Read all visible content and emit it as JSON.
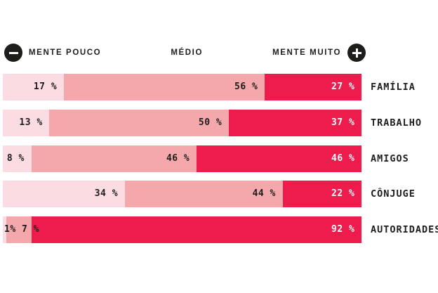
{
  "legend": {
    "left": {
      "icon": "minus-circle",
      "label": "MENTE POUCO"
    },
    "center": {
      "label": "MÉDIO"
    },
    "right": {
      "icon": "plus-circle",
      "label": "MENTE MUITO"
    }
  },
  "colors": {
    "text_dark": "#1d1d1b",
    "text_light": "#ffffff",
    "background": "#ffffff"
  },
  "chart_data": {
    "type": "bar",
    "orientation": "horizontal",
    "stacked": true,
    "title": "",
    "xlabel": "",
    "ylabel": "",
    "xlim": [
      0,
      100
    ],
    "grid": false,
    "legend_position": "top",
    "value_suffix": "%",
    "categories": [
      "FAMÍLIA",
      "TRABALHO",
      "AMIGOS",
      "CÔNJUGE",
      "AUTORIDADES"
    ],
    "series": [
      {
        "name": "MENTE POUCO",
        "color": "#fbdce3",
        "label_color": "#1d1d1b",
        "values": [
          17,
          13,
          8,
          34,
          1
        ]
      },
      {
        "name": "MÉDIO",
        "color": "#f5a8ac",
        "label_color": "#1d1d1b",
        "values": [
          56,
          50,
          46,
          44,
          7
        ]
      },
      {
        "name": "MENTE MUITO",
        "color": "#ee1b4d",
        "label_color": "#ffffff",
        "values": [
          27,
          37,
          46,
          22,
          92
        ]
      }
    ],
    "value_labels": [
      [
        "17 %",
        "56 %",
        "27 %"
      ],
      [
        "13 %",
        "50 %",
        "37 %"
      ],
      [
        "8 %",
        "46 %",
        "46 %"
      ],
      [
        "34 %",
        "44 %",
        "22 %"
      ],
      [
        "1%",
        "7 %",
        "92 %"
      ]
    ]
  }
}
